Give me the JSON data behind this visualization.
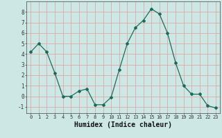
{
  "x": [
    0,
    1,
    2,
    3,
    4,
    5,
    6,
    7,
    8,
    9,
    10,
    11,
    12,
    13,
    14,
    15,
    16,
    17,
    18,
    19,
    20,
    21,
    22,
    23
  ],
  "y": [
    4.2,
    5.0,
    4.2,
    2.2,
    0.0,
    0.0,
    0.5,
    0.7,
    -0.8,
    -0.8,
    -0.1,
    2.5,
    5.0,
    6.5,
    7.2,
    8.3,
    7.8,
    6.0,
    3.2,
    1.0,
    0.2,
    0.2,
    -0.9,
    -1.1
  ],
  "line_color": "#1a6b5a",
  "marker": "D",
  "marker_size": 2.0,
  "bg_color": "#cde8e4",
  "grid_color": "#dbaaa8",
  "xlabel": "Humidex (Indice chaleur)",
  "xlabel_fontsize": 7,
  "xtick_labels": [
    "0",
    "1",
    "2",
    "3",
    "4",
    "5",
    "6",
    "7",
    "8",
    "9",
    "10",
    "11",
    "12",
    "13",
    "14",
    "15",
    "16",
    "17",
    "18",
    "19",
    "20",
    "21",
    "22",
    "23"
  ],
  "ytick_vals": [
    -1,
    0,
    1,
    2,
    3,
    4,
    5,
    6,
    7,
    8
  ],
  "ylim": [
    -1.6,
    9.0
  ],
  "xlim": [
    -0.5,
    23.5
  ]
}
